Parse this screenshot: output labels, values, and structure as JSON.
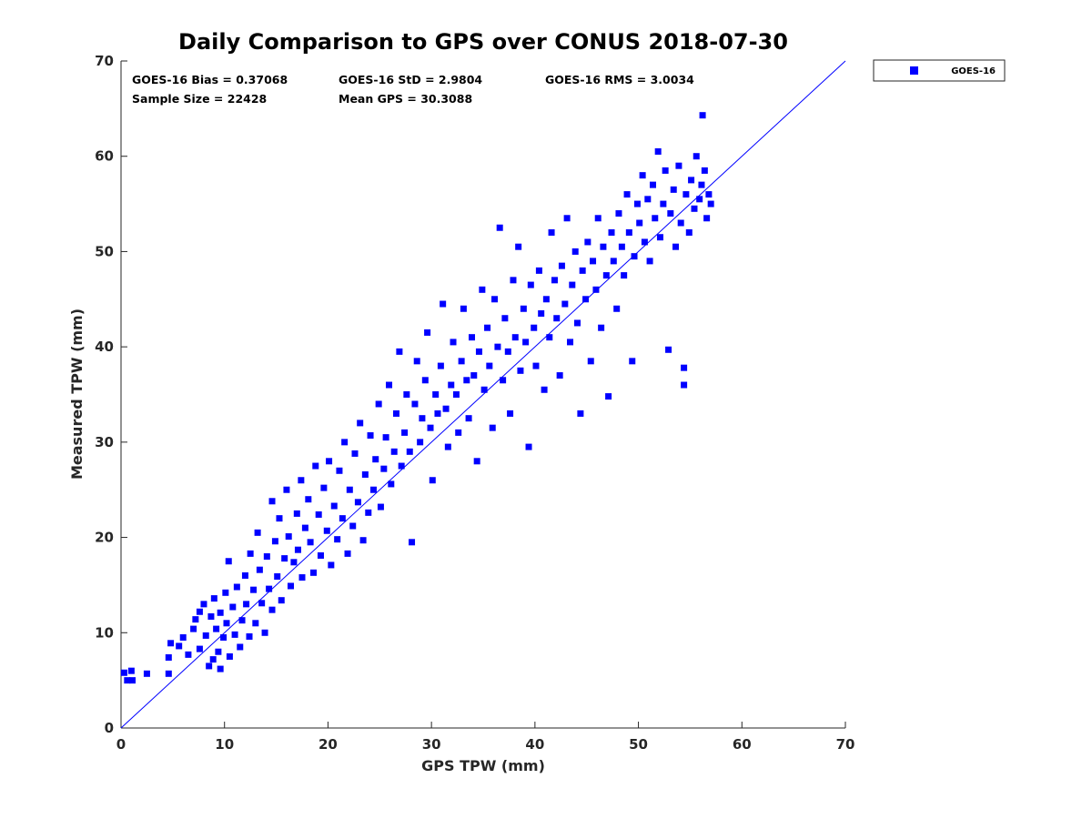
{
  "chart_data": {
    "type": "scatter",
    "title": "Daily Comparison to GPS over CONUS 2018-07-30",
    "xlabel": "GPS TPW (mm)",
    "ylabel": "Measured TPW (mm)",
    "xlim": [
      0,
      70
    ],
    "ylim": [
      0,
      70
    ],
    "xticks": [
      "0",
      "10",
      "20",
      "30",
      "40",
      "50",
      "60",
      "70"
    ],
    "yticks": [
      "0",
      "10",
      "20",
      "30",
      "40",
      "50",
      "60",
      "70"
    ],
    "grid": false,
    "legend_position": "outside-top-right",
    "reference_line": {
      "label": "1:1",
      "from": [
        0,
        0
      ],
      "to": [
        70,
        70
      ]
    },
    "stats": {
      "bias": "GOES-16 Bias = 0.37068",
      "std": "GOES-16 StD = 2.9804",
      "rms": "GOES-16 RMS = 3.0034",
      "sample_size": "Sample Size = 22428",
      "mean_gps": "Mean GPS = 30.3088"
    },
    "series": [
      {
        "name": "GOES-16",
        "color": "#0000ff",
        "marker": "square",
        "n_samples": 22428,
        "bias": 0.37068,
        "std": 2.9804,
        "rms": 3.0034,
        "mean_x": 30.3088,
        "points": [
          [
            0.3,
            5.8
          ],
          [
            0.6,
            5.0
          ],
          [
            1.0,
            6.0
          ],
          [
            1.1,
            5.0
          ],
          [
            2.5,
            5.7
          ],
          [
            4.6,
            5.7
          ],
          [
            4.6,
            7.4
          ],
          [
            4.8,
            8.9
          ],
          [
            5.6,
            8.6
          ],
          [
            6.0,
            9.5
          ],
          [
            6.5,
            7.7
          ],
          [
            7.0,
            10.4
          ],
          [
            7.2,
            11.4
          ],
          [
            7.6,
            12.2
          ],
          [
            7.6,
            8.3
          ],
          [
            8.0,
            13.0
          ],
          [
            8.2,
            9.7
          ],
          [
            8.5,
            6.5
          ],
          [
            8.7,
            11.7
          ],
          [
            8.9,
            7.2
          ],
          [
            9.0,
            13.6
          ],
          [
            9.2,
            10.4
          ],
          [
            9.4,
            8.0
          ],
          [
            9.6,
            12.1
          ],
          [
            9.6,
            6.2
          ],
          [
            9.9,
            9.5
          ],
          [
            10.1,
            14.2
          ],
          [
            10.2,
            11.0
          ],
          [
            10.4,
            17.5
          ],
          [
            10.5,
            7.5
          ],
          [
            10.8,
            12.7
          ],
          [
            11.0,
            9.8
          ],
          [
            11.2,
            14.8
          ],
          [
            11.5,
            8.5
          ],
          [
            11.7,
            11.3
          ],
          [
            12.0,
            16.0
          ],
          [
            12.1,
            13.0
          ],
          [
            12.4,
            9.6
          ],
          [
            12.5,
            18.3
          ],
          [
            12.8,
            14.5
          ],
          [
            13.0,
            11.0
          ],
          [
            13.2,
            20.5
          ],
          [
            13.4,
            16.6
          ],
          [
            13.6,
            13.1
          ],
          [
            13.9,
            10.0
          ],
          [
            14.1,
            18.0
          ],
          [
            14.3,
            14.6
          ],
          [
            14.6,
            23.8
          ],
          [
            14.6,
            12.4
          ],
          [
            14.9,
            19.6
          ],
          [
            15.1,
            15.9
          ],
          [
            15.3,
            22.0
          ],
          [
            15.5,
            13.4
          ],
          [
            15.8,
            17.8
          ],
          [
            16.0,
            25.0
          ],
          [
            16.2,
            20.1
          ],
          [
            16.4,
            14.9
          ],
          [
            16.7,
            17.4
          ],
          [
            17.0,
            22.5
          ],
          [
            17.1,
            18.7
          ],
          [
            17.4,
            26.0
          ],
          [
            17.5,
            15.8
          ],
          [
            17.8,
            21.0
          ],
          [
            18.1,
            24.0
          ],
          [
            18.3,
            19.5
          ],
          [
            18.6,
            16.3
          ],
          [
            18.8,
            27.5
          ],
          [
            19.1,
            22.4
          ],
          [
            19.3,
            18.1
          ],
          [
            19.6,
            25.2
          ],
          [
            19.9,
            20.7
          ],
          [
            20.1,
            28.0
          ],
          [
            20.3,
            17.1
          ],
          [
            20.6,
            23.3
          ],
          [
            20.9,
            19.8
          ],
          [
            21.1,
            27.0
          ],
          [
            21.4,
            22.0
          ],
          [
            21.6,
            30.0
          ],
          [
            21.9,
            18.3
          ],
          [
            22.1,
            25.0
          ],
          [
            22.4,
            21.2
          ],
          [
            22.6,
            28.8
          ],
          [
            22.9,
            23.7
          ],
          [
            23.1,
            32.0
          ],
          [
            23.4,
            19.7
          ],
          [
            23.6,
            26.6
          ],
          [
            23.9,
            22.6
          ],
          [
            24.1,
            30.7
          ],
          [
            24.4,
            25.0
          ],
          [
            24.6,
            28.2
          ],
          [
            24.9,
            34.0
          ],
          [
            25.1,
            23.2
          ],
          [
            25.4,
            27.2
          ],
          [
            25.6,
            30.5
          ],
          [
            25.9,
            36.0
          ],
          [
            26.1,
            25.6
          ],
          [
            26.4,
            29.0
          ],
          [
            26.6,
            33.0
          ],
          [
            26.9,
            39.5
          ],
          [
            27.1,
            27.5
          ],
          [
            27.4,
            31.0
          ],
          [
            27.6,
            35.0
          ],
          [
            27.9,
            29.0
          ],
          [
            28.1,
            19.5
          ],
          [
            28.4,
            34.0
          ],
          [
            28.6,
            38.5
          ],
          [
            28.9,
            30.0
          ],
          [
            29.1,
            32.5
          ],
          [
            29.4,
            36.5
          ],
          [
            29.6,
            41.5
          ],
          [
            29.9,
            31.5
          ],
          [
            30.1,
            26.0
          ],
          [
            30.4,
            35.0
          ],
          [
            30.6,
            33.0
          ],
          [
            30.9,
            38.0
          ],
          [
            31.1,
            44.5
          ],
          [
            31.4,
            33.5
          ],
          [
            31.6,
            29.5
          ],
          [
            31.9,
            36.0
          ],
          [
            32.1,
            40.5
          ],
          [
            32.4,
            35.0
          ],
          [
            32.6,
            31.0
          ],
          [
            32.9,
            38.5
          ],
          [
            33.1,
            44.0
          ],
          [
            33.4,
            36.5
          ],
          [
            33.6,
            32.5
          ],
          [
            33.9,
            41.0
          ],
          [
            34.1,
            37.0
          ],
          [
            34.4,
            28.0
          ],
          [
            34.6,
            39.5
          ],
          [
            34.9,
            46.0
          ],
          [
            35.1,
            35.5
          ],
          [
            35.4,
            42.0
          ],
          [
            35.6,
            38.0
          ],
          [
            35.9,
            31.5
          ],
          [
            36.1,
            45.0
          ],
          [
            36.4,
            40.0
          ],
          [
            36.6,
            52.5
          ],
          [
            36.9,
            36.5
          ],
          [
            37.1,
            43.0
          ],
          [
            37.4,
            39.5
          ],
          [
            37.6,
            33.0
          ],
          [
            37.9,
            47.0
          ],
          [
            38.1,
            41.0
          ],
          [
            38.4,
            50.5
          ],
          [
            38.6,
            37.5
          ],
          [
            38.9,
            44.0
          ],
          [
            39.1,
            40.5
          ],
          [
            39.4,
            29.5
          ],
          [
            39.6,
            46.5
          ],
          [
            39.9,
            42.0
          ],
          [
            40.1,
            38.0
          ],
          [
            40.4,
            48.0
          ],
          [
            40.6,
            43.5
          ],
          [
            40.9,
            35.5
          ],
          [
            41.1,
            45.0
          ],
          [
            41.4,
            41.0
          ],
          [
            41.6,
            52.0
          ],
          [
            41.9,
            47.0
          ],
          [
            42.1,
            43.0
          ],
          [
            42.4,
            37.0
          ],
          [
            42.6,
            48.5
          ],
          [
            42.9,
            44.5
          ],
          [
            43.1,
            53.5
          ],
          [
            43.4,
            40.5
          ],
          [
            43.6,
            46.5
          ],
          [
            43.9,
            50.0
          ],
          [
            44.1,
            42.5
          ],
          [
            44.4,
            33.0
          ],
          [
            44.6,
            48.0
          ],
          [
            44.9,
            45.0
          ],
          [
            45.1,
            51.0
          ],
          [
            45.4,
            38.5
          ],
          [
            45.6,
            49.0
          ],
          [
            45.9,
            46.0
          ],
          [
            46.1,
            53.5
          ],
          [
            46.4,
            42.0
          ],
          [
            46.6,
            50.5
          ],
          [
            46.9,
            47.5
          ],
          [
            47.1,
            34.8
          ],
          [
            47.4,
            52.0
          ],
          [
            47.6,
            49.0
          ],
          [
            47.9,
            44.0
          ],
          [
            48.1,
            54.0
          ],
          [
            48.4,
            50.5
          ],
          [
            48.6,
            47.5
          ],
          [
            48.9,
            56.0
          ],
          [
            49.1,
            52.0
          ],
          [
            49.4,
            38.5
          ],
          [
            49.6,
            49.5
          ],
          [
            49.9,
            55.0
          ],
          [
            50.1,
            53.0
          ],
          [
            50.4,
            58.0
          ],
          [
            50.6,
            51.0
          ],
          [
            50.9,
            55.5
          ],
          [
            51.1,
            49.0
          ],
          [
            51.4,
            57.0
          ],
          [
            51.6,
            53.5
          ],
          [
            51.9,
            60.5
          ],
          [
            52.1,
            51.5
          ],
          [
            52.4,
            55.0
          ],
          [
            52.6,
            58.5
          ],
          [
            52.9,
            39.7
          ],
          [
            53.1,
            54.0
          ],
          [
            53.4,
            56.5
          ],
          [
            53.6,
            50.5
          ],
          [
            53.9,
            59.0
          ],
          [
            54.1,
            53.0
          ],
          [
            54.4,
            36.0
          ],
          [
            54.4,
            37.8
          ],
          [
            54.6,
            56.0
          ],
          [
            54.9,
            52.0
          ],
          [
            55.1,
            57.5
          ],
          [
            55.4,
            54.5
          ],
          [
            55.6,
            60.0
          ],
          [
            55.9,
            55.5
          ],
          [
            56.1,
            57.0
          ],
          [
            56.2,
            64.3
          ],
          [
            56.4,
            58.5
          ],
          [
            56.6,
            53.5
          ],
          [
            56.8,
            56.0
          ],
          [
            57.0,
            55.0
          ]
        ]
      }
    ]
  }
}
